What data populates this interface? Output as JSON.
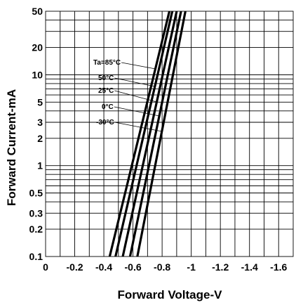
{
  "chart_data": {
    "type": "line",
    "xlabel": "Forward Voltage-V",
    "ylabel": "Forward Current-mA",
    "xlim": [
      0,
      -1.7
    ],
    "ylim": [
      0.1,
      50
    ],
    "y_scale": "log",
    "grid": true,
    "x_ticks": [
      "0",
      "-0.2",
      "-0.4",
      "-0.6",
      "-0.8",
      "-1",
      "-1.2",
      "-1.4",
      "-1.6"
    ],
    "x_tick_values": [
      0,
      -0.2,
      -0.4,
      -0.6,
      -0.8,
      -1.0,
      -1.2,
      -1.4,
      -1.6
    ],
    "y_ticks": [
      "0.1",
      "0.2",
      "0.3",
      "0.5",
      "1",
      "2",
      "3",
      "5",
      "10",
      "20",
      "50"
    ],
    "y_tick_values": [
      0.1,
      0.2,
      0.3,
      0.5,
      1,
      2,
      3,
      5,
      10,
      20,
      50
    ],
    "series": [
      {
        "name": "Ta=85°C",
        "x": [
          -0.44,
          -0.85
        ],
        "y": [
          0.1,
          50
        ]
      },
      {
        "name": "50°C",
        "x": [
          -0.48,
          -0.87
        ],
        "y": [
          0.1,
          50
        ]
      },
      {
        "name": "25°C",
        "x": [
          -0.53,
          -0.9
        ],
        "y": [
          0.1,
          50
        ]
      },
      {
        "name": "0°C",
        "x": [
          -0.58,
          -0.93
        ],
        "y": [
          0.1,
          50
        ]
      },
      {
        "name": "-30°C",
        "x": [
          -0.63,
          -0.96
        ],
        "y": [
          0.1,
          50
        ]
      }
    ]
  }
}
